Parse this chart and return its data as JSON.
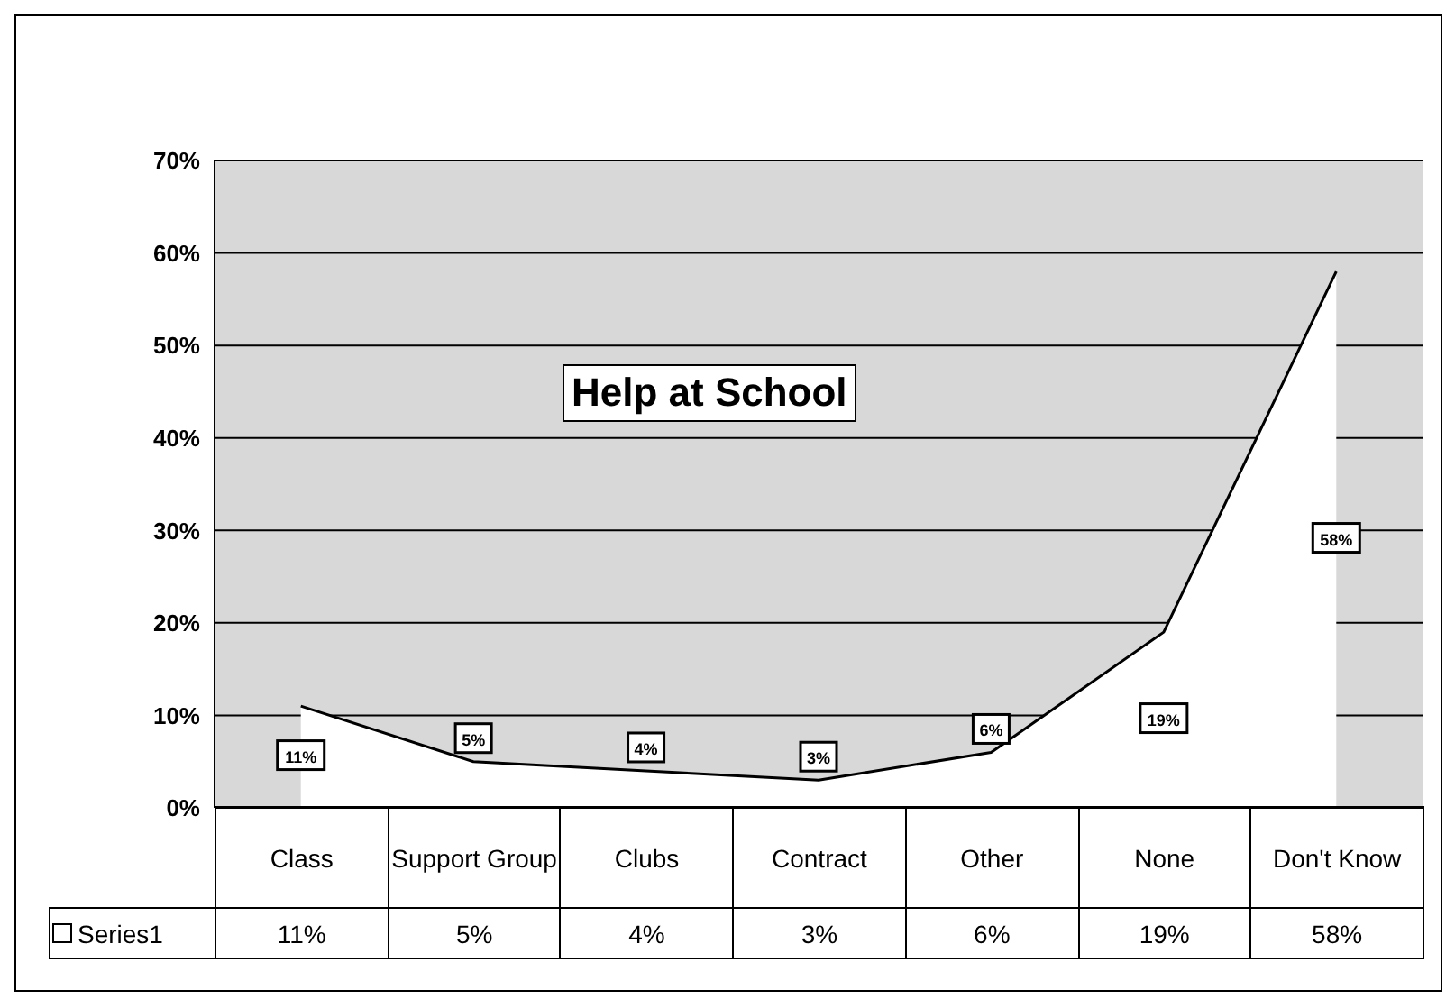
{
  "chart_data": {
    "type": "area",
    "title": "Help at School",
    "categories": [
      "Class",
      "Support Group",
      "Clubs",
      "Contract",
      "Other",
      "None",
      "Don't Know"
    ],
    "series": [
      {
        "name": "Series1",
        "color": "#ffffff",
        "values": [
          11,
          5,
          4,
          3,
          6,
          19,
          58
        ],
        "value_labels": [
          "11%",
          "5%",
          "4%",
          "3%",
          "6%",
          "19%",
          "58%"
        ]
      }
    ],
    "ylim": [
      0,
      70
    ],
    "yticks": [
      {
        "value": 0,
        "label": "0%"
      },
      {
        "value": 10,
        "label": "10%"
      },
      {
        "value": 20,
        "label": "20%"
      },
      {
        "value": 30,
        "label": "30%"
      },
      {
        "value": 40,
        "label": "40%"
      },
      {
        "value": 50,
        "label": "50%"
      },
      {
        "value": 60,
        "label": "60%"
      },
      {
        "value": 70,
        "label": "70%"
      }
    ],
    "grid": "y"
  }
}
